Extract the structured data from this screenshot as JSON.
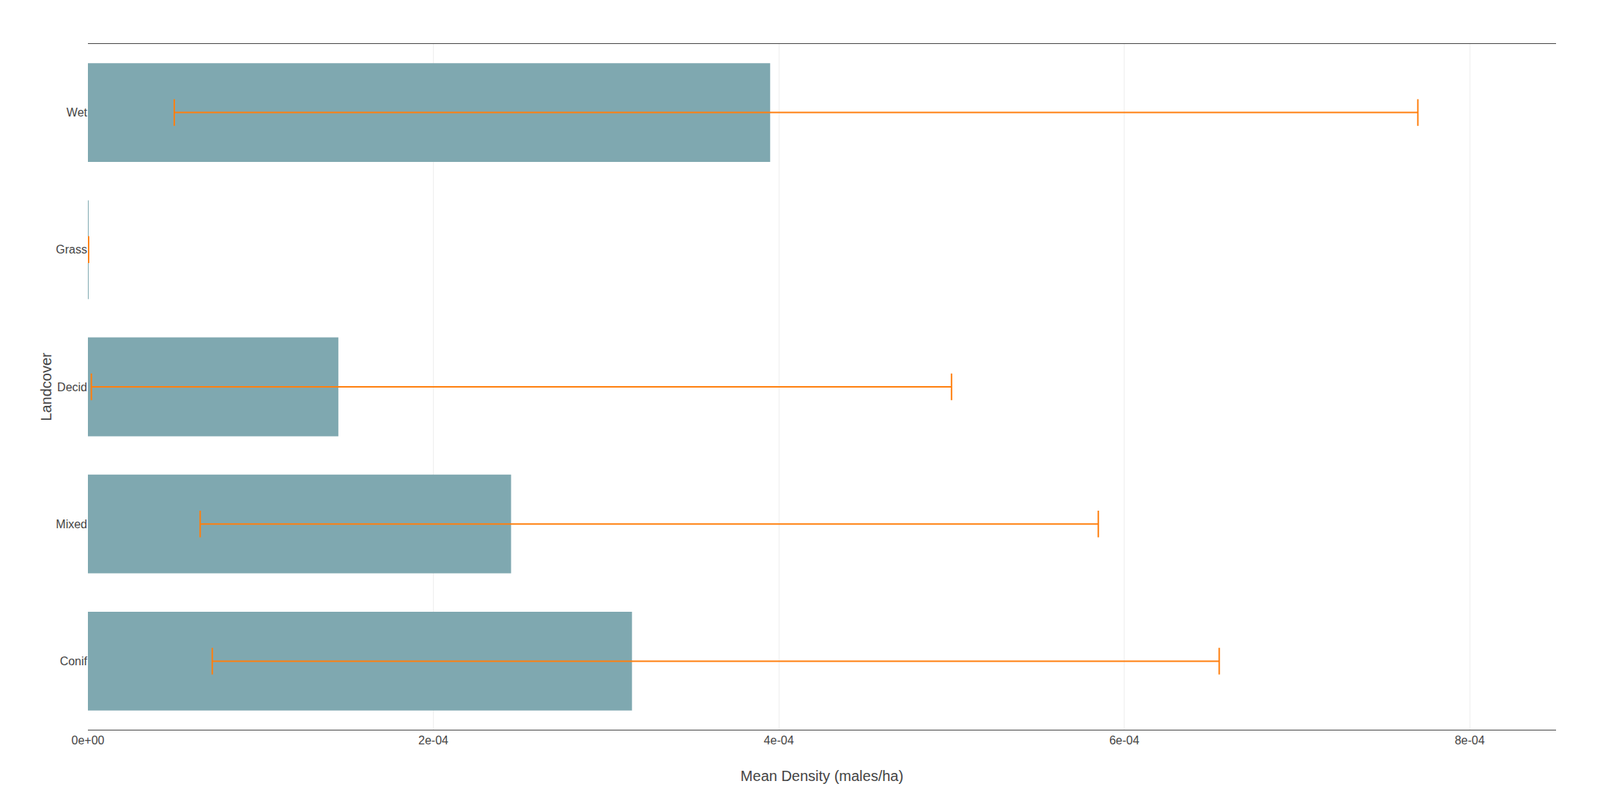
{
  "chart_data": {
    "type": "bar",
    "orientation": "horizontal",
    "xlabel": "Mean Density (males/ha)",
    "ylabel": "Landcover",
    "categories": [
      "Wet",
      "Grass",
      "Decid",
      "Mixed",
      "Conif"
    ],
    "values": [
      0.000395,
      3e-07,
      0.000145,
      0.000245,
      0.000315
    ],
    "error_low": [
      5e-05,
      3e-07,
      2e-06,
      6.5e-05,
      7.2e-05
    ],
    "error_high": [
      0.00077,
      3e-07,
      0.0005,
      0.000585,
      0.000655
    ],
    "color": "#7fa8b0",
    "xlim": [
      0,
      0.00085
    ],
    "xticks": [
      {
        "value": 0,
        "label": "0e+00"
      },
      {
        "value": 0.0002,
        "label": "2e-04"
      },
      {
        "value": 0.0004,
        "label": "4e-04"
      },
      {
        "value": 0.0006,
        "label": "6e-04"
      },
      {
        "value": 0.0008,
        "label": "8e-04"
      }
    ],
    "grid": true
  }
}
